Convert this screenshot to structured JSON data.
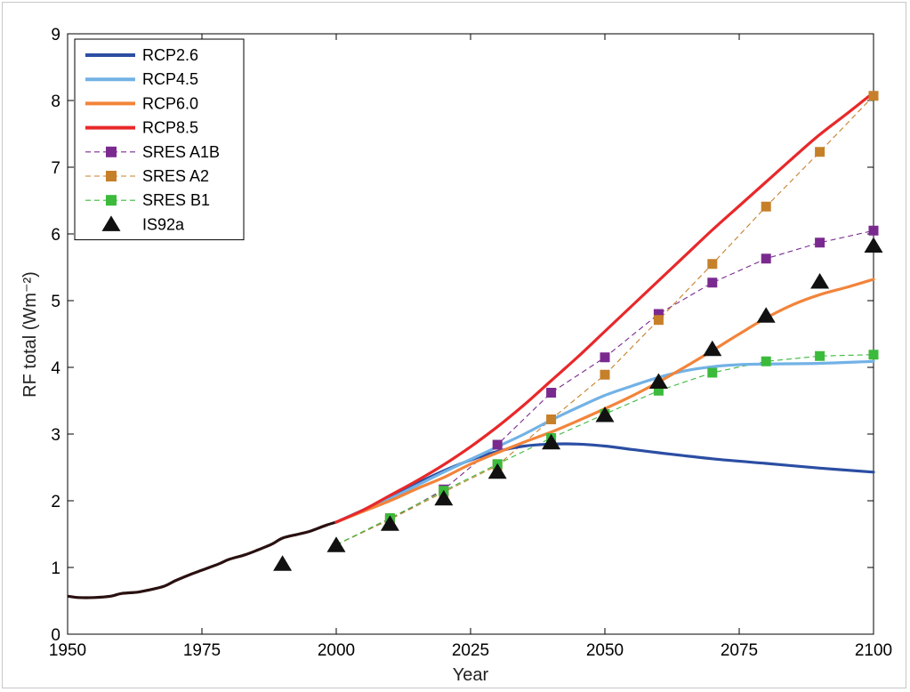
{
  "chart_data": {
    "type": "line",
    "title": "",
    "xlabel": "Year",
    "ylabel": "RF total (Wm⁻²)",
    "xlim": [
      1950,
      2100
    ],
    "ylim": [
      0,
      9
    ],
    "xticks": [
      1950,
      1975,
      2000,
      2025,
      2050,
      2075,
      2100
    ],
    "yticks": [
      0,
      1,
      2,
      3,
      4,
      5,
      6,
      7,
      8,
      9
    ],
    "grid": false,
    "legend_position": "top-left",
    "historical": {
      "color": "#2a1010",
      "x": [
        1950,
        1952,
        1955,
        1958,
        1960,
        1963,
        1965,
        1968,
        1970,
        1973,
        1975,
        1978,
        1980,
        1983,
        1985,
        1988,
        1990,
        1993,
        1995,
        1998,
        2000
      ],
      "y": [
        0.57,
        0.55,
        0.55,
        0.57,
        0.61,
        0.63,
        0.66,
        0.72,
        0.8,
        0.9,
        0.96,
        1.05,
        1.12,
        1.19,
        1.25,
        1.35,
        1.44,
        1.5,
        1.54,
        1.63,
        1.68
      ]
    },
    "series": [
      {
        "name": "RCP2.6",
        "style": "solid",
        "color": "#2b4ea3",
        "x": [
          2000,
          2005,
          2010,
          2015,
          2020,
          2025,
          2030,
          2035,
          2040,
          2045,
          2050,
          2055,
          2060,
          2070,
          2080,
          2090,
          2100
        ],
        "y": [
          1.68,
          1.86,
          2.05,
          2.26,
          2.45,
          2.61,
          2.74,
          2.82,
          2.85,
          2.85,
          2.82,
          2.77,
          2.72,
          2.63,
          2.56,
          2.49,
          2.43
        ]
      },
      {
        "name": "RCP4.5",
        "style": "solid",
        "color": "#72b2e6",
        "x": [
          2000,
          2005,
          2010,
          2015,
          2020,
          2025,
          2030,
          2035,
          2040,
          2045,
          2050,
          2055,
          2060,
          2065,
          2070,
          2075,
          2080,
          2090,
          2100
        ],
        "y": [
          1.68,
          1.85,
          2.03,
          2.23,
          2.43,
          2.62,
          2.81,
          3.0,
          3.21,
          3.4,
          3.58,
          3.72,
          3.85,
          3.95,
          4.01,
          4.04,
          4.05,
          4.06,
          4.09
        ]
      },
      {
        "name": "RCP6.0",
        "style": "solid",
        "color": "#f2843a",
        "x": [
          2000,
          2005,
          2010,
          2015,
          2020,
          2025,
          2030,
          2035,
          2040,
          2045,
          2050,
          2055,
          2060,
          2065,
          2070,
          2075,
          2080,
          2085,
          2090,
          2095,
          2100
        ],
        "y": [
          1.68,
          1.84,
          2.0,
          2.18,
          2.35,
          2.55,
          2.72,
          2.88,
          3.03,
          3.2,
          3.38,
          3.57,
          3.78,
          4.01,
          4.25,
          4.5,
          4.74,
          4.94,
          5.09,
          5.2,
          5.32
        ]
      },
      {
        "name": "RCP8.5",
        "style": "solid",
        "color": "#e8282a",
        "x": [
          2000,
          2005,
          2010,
          2015,
          2020,
          2025,
          2030,
          2035,
          2040,
          2045,
          2050,
          2055,
          2060,
          2065,
          2070,
          2075,
          2080,
          2085,
          2090,
          2095,
          2100
        ],
        "y": [
          1.68,
          1.86,
          2.08,
          2.3,
          2.54,
          2.81,
          3.11,
          3.44,
          3.8,
          4.16,
          4.54,
          4.92,
          5.3,
          5.68,
          6.06,
          6.42,
          6.78,
          7.14,
          7.49,
          7.8,
          8.12
        ]
      },
      {
        "name": "SRES A1B",
        "style": "dashed-square",
        "color": "#7a2a8f",
        "x": [
          2000,
          2010,
          2020,
          2030,
          2040,
          2050,
          2060,
          2070,
          2080,
          2090,
          2100
        ],
        "y": [
          1.34,
          1.72,
          2.17,
          2.84,
          3.62,
          4.15,
          4.8,
          5.27,
          5.63,
          5.87,
          6.05
        ]
      },
      {
        "name": "SRES A2",
        "style": "dashed-square",
        "color": "#c6802a",
        "x": [
          2000,
          2010,
          2020,
          2030,
          2040,
          2050,
          2060,
          2070,
          2080,
          2090,
          2100
        ],
        "y": [
          1.34,
          1.72,
          2.13,
          2.53,
          3.22,
          3.89,
          4.71,
          5.55,
          6.41,
          7.23,
          8.07
        ]
      },
      {
        "name": "SRES B1",
        "style": "dashed-square",
        "color": "#3cba3c",
        "x": [
          2000,
          2010,
          2020,
          2030,
          2040,
          2050,
          2060,
          2070,
          2080,
          2090,
          2100
        ],
        "y": [
          1.34,
          1.74,
          2.15,
          2.55,
          2.94,
          3.3,
          3.65,
          3.92,
          4.09,
          4.17,
          4.19
        ]
      },
      {
        "name": "IS92a",
        "style": "triangle",
        "color": "#111111",
        "x": [
          1990,
          2000,
          2010,
          2020,
          2030,
          2040,
          2050,
          2060,
          2070,
          2080,
          2090,
          2100
        ],
        "y": [
          1.05,
          1.33,
          1.65,
          2.03,
          2.43,
          2.87,
          3.28,
          3.78,
          4.27,
          4.77,
          5.28,
          5.82
        ]
      }
    ]
  }
}
